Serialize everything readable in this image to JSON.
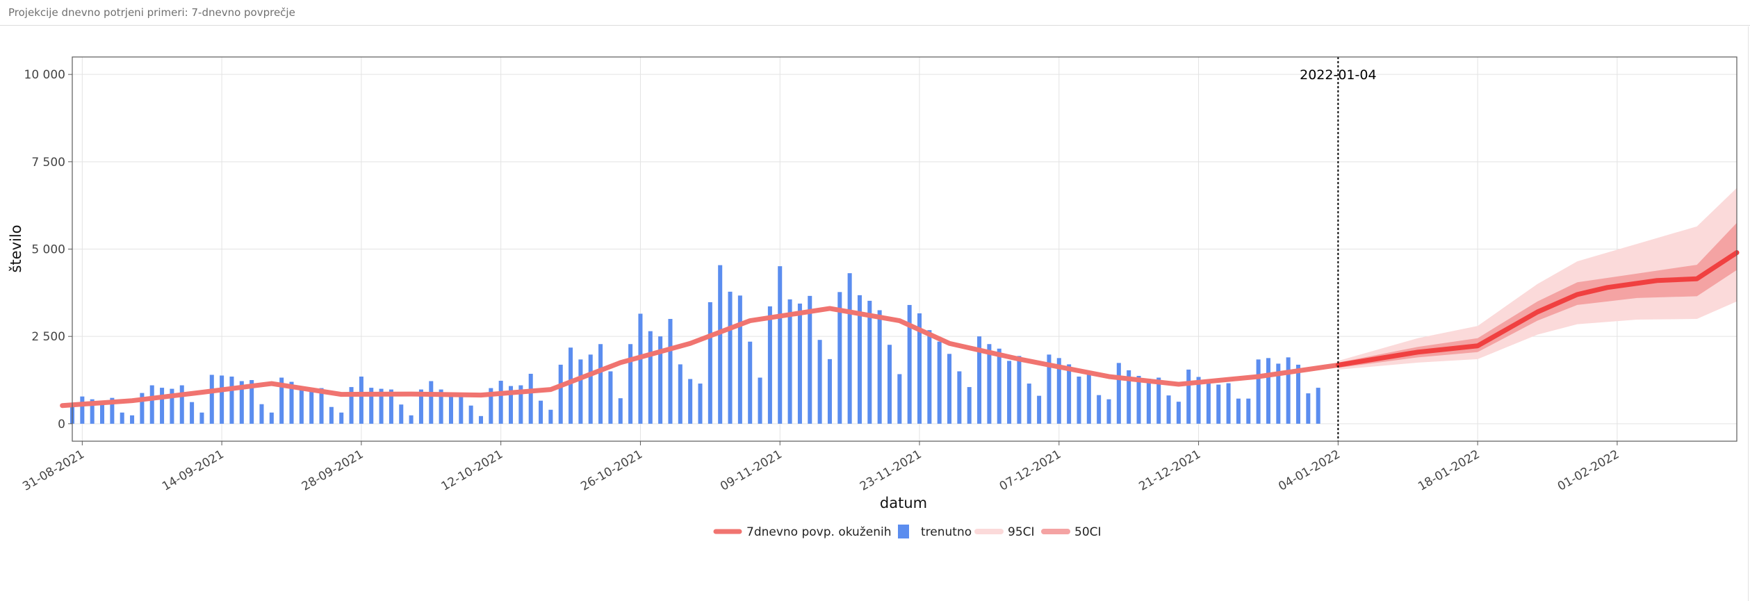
{
  "panel": {
    "title": "Projekcije dnevno potrjeni primeri: 7-dnevno povprečje"
  },
  "chart_data": {
    "type": "bar+line",
    "xlabel": "datum",
    "ylabel": "število",
    "ylim": [
      -500,
      10500
    ],
    "y_ticks": [
      0,
      2500,
      5000,
      7500,
      10000
    ],
    "y_tick_labels": [
      "0",
      "2 500",
      "5 000",
      "7 500",
      "10 000"
    ],
    "x_range": [
      "2021-08-30",
      "2022-02-13"
    ],
    "x_ticks": [
      "2021-08-31",
      "2021-09-14",
      "2021-09-28",
      "2021-10-12",
      "2021-10-26",
      "2021-11-09",
      "2021-11-23",
      "2021-12-07",
      "2021-12-21",
      "2022-01-04",
      "2022-01-18",
      "2022-02-01"
    ],
    "x_tick_labels": [
      "31-08-2021",
      "14-09-2021",
      "28-09-2021",
      "12-10-2021",
      "26-10-2021",
      "09-11-2021",
      "23-11-2021",
      "07-12-2021",
      "21-12-2021",
      "04-01-2022",
      "18-01-2022",
      "01-02-2022"
    ],
    "grid": true,
    "legend_position": "bottom",
    "annotation": {
      "date": "2022-01-04",
      "label": "2022-01-04"
    },
    "colors": {
      "bars": "#5b8def",
      "line": "#f07470",
      "projection": "#f04040",
      "ci95": "#fbdada",
      "ci50": "#f4a3a3",
      "vline": "#000000"
    },
    "legend": [
      {
        "label": "7dnevno povp. okuženih",
        "kind": "line",
        "color": "#f07470"
      },
      {
        "label": "trenutno",
        "kind": "bar",
        "color": "#5b8def"
      },
      {
        "label": "95CI",
        "kind": "band",
        "color": "#fbdada"
      },
      {
        "label": "50CI",
        "kind": "band",
        "color": "#f4a3a3"
      }
    ],
    "bars": {
      "name": "trenutno",
      "start_date": "2021-08-30",
      "values": [
        600,
        780,
        700,
        650,
        740,
        320,
        240,
        880,
        1100,
        1030,
        1000,
        1100,
        620,
        320,
        1400,
        1380,
        1350,
        1220,
        1250,
        560,
        320,
        1320,
        1200,
        1030,
        960,
        1020,
        480,
        320,
        1050,
        1350,
        1030,
        1000,
        980,
        550,
        240,
        980,
        1220,
        980,
        860,
        780,
        520,
        220,
        1020,
        1230,
        1080,
        1100,
        1430,
        660,
        400,
        1690,
        2180,
        1840,
        1980,
        2280,
        1500,
        730,
        2280,
        3150,
        2650,
        2500,
        3000,
        1700,
        1280,
        1150,
        3480,
        4540,
        3780,
        3670,
        2350,
        1320,
        3360,
        4510,
        3560,
        3440,
        3660,
        2400,
        1850,
        3770,
        4310,
        3680,
        3520,
        3250,
        2260,
        1420,
        3400,
        3160,
        2680,
        2350,
        2000,
        1500,
        1050,
        2500,
        2280,
        2150,
        1800,
        1940,
        1150,
        800,
        1980,
        1880,
        1700,
        1350,
        1500,
        820,
        700,
        1740,
        1530,
        1370,
        1290,
        1320,
        810,
        630,
        1550,
        1340,
        1200,
        1120,
        1160,
        720,
        720,
        1840,
        1880,
        1720,
        1900,
        1690,
        870,
        1030
      ]
    },
    "series": [
      {
        "name": "7dnevno povp. okuženih",
        "points": [
          [
            "2021-08-29",
            520
          ],
          [
            "2021-09-05",
            660
          ],
          [
            "2021-09-12",
            900
          ],
          [
            "2021-09-19",
            1150
          ],
          [
            "2021-09-26",
            840
          ],
          [
            "2021-10-03",
            850
          ],
          [
            "2021-10-10",
            820
          ],
          [
            "2021-10-17",
            980
          ],
          [
            "2021-10-24",
            1750
          ],
          [
            "2021-10-31",
            2300
          ],
          [
            "2021-11-06",
            2950
          ],
          [
            "2021-11-14",
            3300
          ],
          [
            "2021-11-21",
            2950
          ],
          [
            "2021-11-26",
            2300
          ],
          [
            "2021-12-03",
            1850
          ],
          [
            "2021-12-12",
            1350
          ],
          [
            "2021-12-19",
            1130
          ],
          [
            "2021-12-27",
            1350
          ],
          [
            "2022-01-04",
            1680
          ]
        ]
      },
      {
        "name": "projection",
        "points": [
          [
            "2022-01-04",
            1680
          ],
          [
            "2022-01-12",
            2050
          ],
          [
            "2022-01-18",
            2230
          ],
          [
            "2022-01-24",
            3200
          ],
          [
            "2022-01-24",
            3200
          ],
          [
            "2022-01-28",
            3700
          ],
          [
            "2022-01-31",
            3900
          ],
          [
            "2022-02-05",
            4100
          ],
          [
            "2022-02-09",
            4150
          ],
          [
            "2022-02-13",
            4900
          ]
        ]
      }
    ],
    "ci95": [
      [
        "2022-01-04",
        1550,
        1800
      ],
      [
        "2022-01-12",
        1750,
        2450
      ],
      [
        "2022-01-18",
        1850,
        2800
      ],
      [
        "2022-01-24",
        2550,
        4000
      ],
      [
        "2022-01-28",
        2850,
        4650
      ],
      [
        "2022-02-03",
        2980,
        5150
      ],
      [
        "2022-02-09",
        3000,
        5650
      ],
      [
        "2022-02-13",
        3500,
        6750
      ]
    ],
    "ci50": [
      [
        "2022-01-04",
        1600,
        1750
      ],
      [
        "2022-01-12",
        1900,
        2200
      ],
      [
        "2022-01-18",
        2050,
        2450
      ],
      [
        "2022-01-24",
        2950,
        3500
      ],
      [
        "2022-01-28",
        3400,
        4050
      ],
      [
        "2022-02-03",
        3600,
        4300
      ],
      [
        "2022-02-09",
        3650,
        4550
      ],
      [
        "2022-02-13",
        4400,
        5750
      ]
    ]
  }
}
